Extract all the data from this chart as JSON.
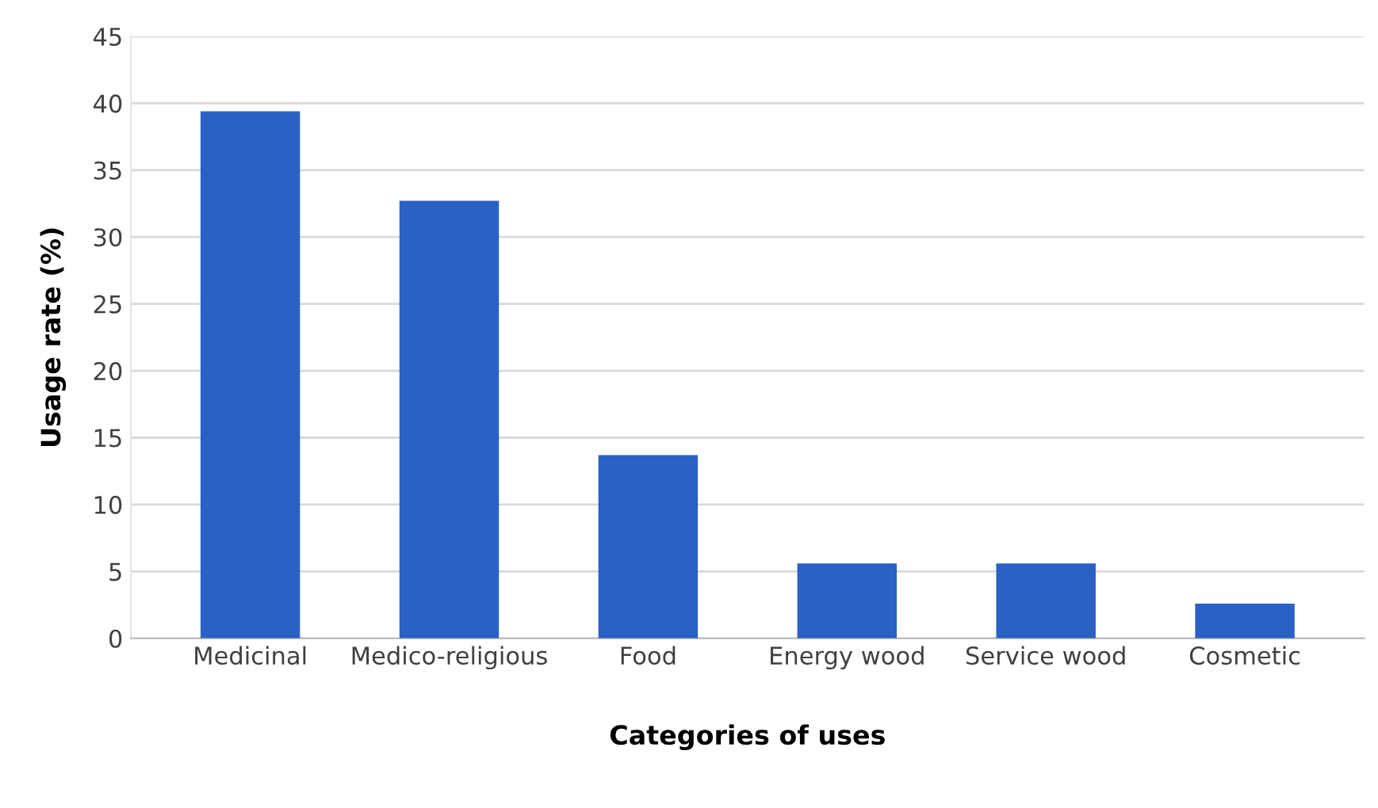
{
  "chart_data": {
    "type": "bar",
    "xlabel": "Categories of uses",
    "ylabel": "Usage rate (%)",
    "categories": [
      "Medicinal",
      "Medico-religious",
      "Food",
      "Energy wood",
      "Service wood",
      "Cosmetic"
    ],
    "values": [
      39.4,
      32.7,
      13.7,
      5.6,
      5.6,
      2.6
    ],
    "color": "#2b60c4",
    "ylim": [
      0,
      45
    ],
    "yticks": [
      0,
      5,
      10,
      15,
      20,
      25,
      30,
      35,
      40,
      45
    ],
    "grid": "y",
    "legend": false
  }
}
